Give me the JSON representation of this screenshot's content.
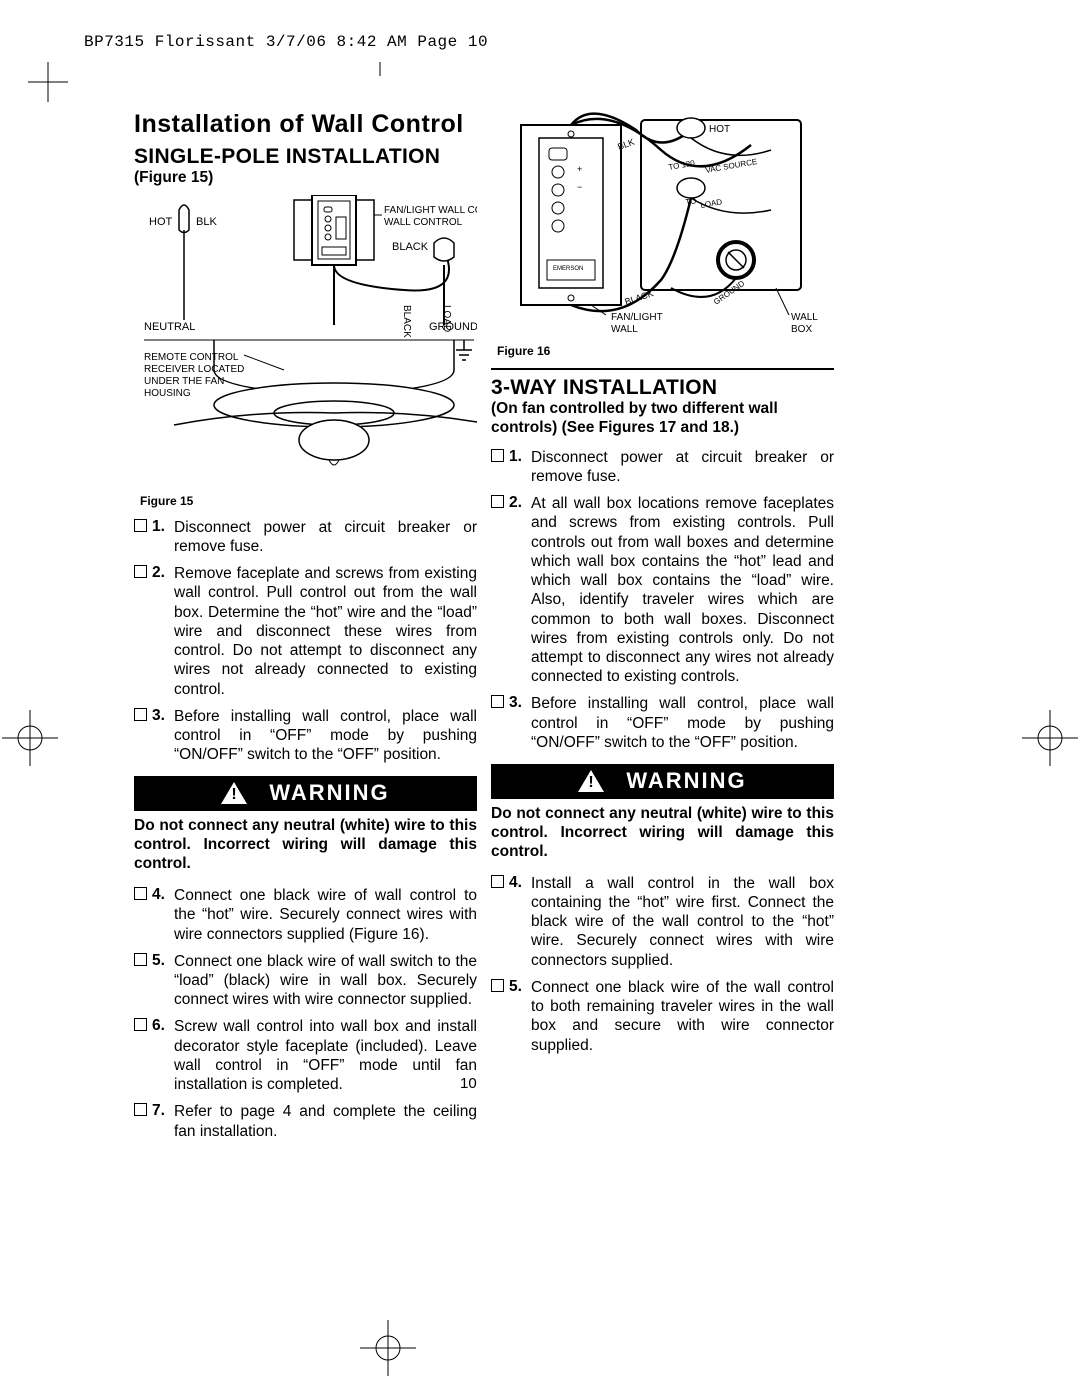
{
  "header": "BP7315 Florissant  3/7/06  8:42 AM  Page 10",
  "page_number": "10",
  "left": {
    "title": "Installation of Wall Control",
    "subtitle": "SINGLE-POLE INSTALLATION",
    "figure_ref": "(Figure 15)",
    "figure_caption": "Figure 15",
    "diagram": {
      "labels": {
        "hot": "HOT",
        "blk": "BLK",
        "fanlight": "FAN/LIGHT\nWALL CONTROL",
        "black": "BLACK",
        "black_v": "BLACK",
        "load_v": "LOAD",
        "neutral": "NEUTRAL",
        "ground": "GROUND",
        "remote": "REMOTE CONTROL\nRECEIVER LOCATED\nUNDER THE FAN\nHOUSING"
      }
    },
    "steps_a": [
      {
        "n": "1.",
        "t": "Disconnect power at circuit breaker or remove fuse."
      },
      {
        "n": "2.",
        "t": "Remove faceplate and screws from existing wall control. Pull control out from the wall box. Determine the “hot” wire and the “load” wire and disconnect these wires from control. Do not attempt to disconnect any wires not already connected to existing control."
      },
      {
        "n": "3.",
        "t": "Before installing wall control, place wall control in “OFF” mode by pushing “ON/OFF” switch to the “OFF” position."
      }
    ],
    "warning_label": "WARNING",
    "warning_text": "Do not connect any neutral (white) wire to this control. Incorrect wiring will damage this control.",
    "steps_b": [
      {
        "n": "4.",
        "t": "Connect one black wire of wall control to the “hot” wire. Securely connect wires with wire connectors supplied (Figure 16)."
      },
      {
        "n": "5.",
        "t": "Connect one black wire of wall switch to the “load” (black) wire in wall box. Securely connect wires with wire connector supplied."
      },
      {
        "n": "6.",
        "t": "Screw wall control into wall box and install decorator style faceplate (included). Leave wall control in “OFF” mode until fan installation is completed."
      },
      {
        "n": "7.",
        "t": "Refer to page 4 and complete the ceiling fan installation."
      }
    ]
  },
  "right": {
    "figure_caption": "Figure 16",
    "diagram": {
      "labels": {
        "blk": "BLK",
        "hot": "HOT",
        "vac": "TO 120VAC SOURCE",
        "toload": "TO LOAD",
        "black": "BLACK",
        "ground": "GROUND",
        "fanlight": "FAN/LIGHT\nWALL\nCONTROL",
        "wallbox": "WALL\nBOX",
        "emerson": "EMERSON"
      }
    },
    "subtitle": "3-WAY INSTALLATION",
    "subnote": "(On fan controlled by two different wall controls) (See Figures 17 and 18.)",
    "steps_a": [
      {
        "n": "1.",
        "t": "Disconnect power at circuit breaker or remove fuse."
      },
      {
        "n": "2.",
        "t": "At all wall box locations remove faceplates and screws from existing controls. Pull controls out from wall boxes and determine which wall box contains the “hot” lead and which wall box contains the “load” wire. Also, identify traveler wires which are common to both wall boxes. Disconnect wires from existing controls only. Do not attempt to disconnect any wires not already connected to existing controls."
      },
      {
        "n": "3.",
        "t": "Before installing wall control, place wall control in “OFF” mode by pushing “ON/OFF” switch to the “OFF” position."
      }
    ],
    "warning_label": "WARNING",
    "warning_text": "Do not connect any neutral (white) wire to this control. Incorrect wiring will damage this control.",
    "steps_b": [
      {
        "n": "4.",
        "t": "Install a wall control in the wall box containing the “hot” wire first. Connect the black wire of the wall control to the “hot” wire. Securely connect wires with wire connectors supplied."
      },
      {
        "n": "5.",
        "t": "Connect one black wire of the wall control to both remaining traveler wires in the wall box and secure with wire connector supplied."
      }
    ]
  }
}
